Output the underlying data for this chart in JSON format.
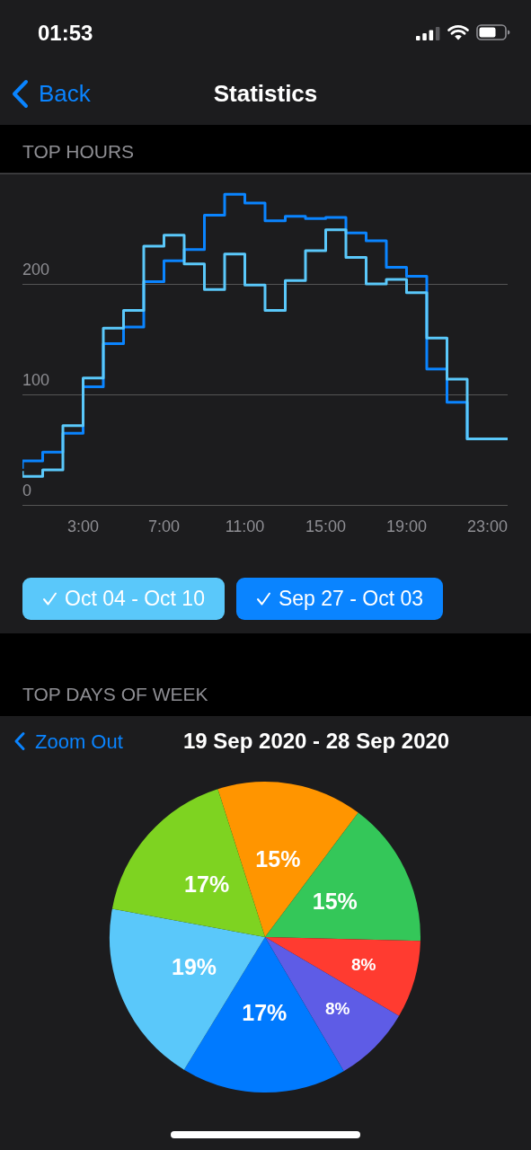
{
  "chart_data": [
    {
      "type": "step",
      "title": "TOP HOURS",
      "annotations": [
        "01:53",
        "Back",
        "Statistics"
      ],
      "x": [
        0,
        1,
        2,
        3,
        4,
        5,
        6,
        7,
        8,
        9,
        10,
        11,
        12,
        13,
        14,
        15,
        16,
        17,
        18,
        19,
        20,
        21,
        22,
        23,
        24
      ],
      "xlim": [
        0,
        24
      ],
      "xticks": [
        {
          "value": 3,
          "label": "3:00"
        },
        {
          "value": 7,
          "label": "7:00"
        },
        {
          "value": 11,
          "label": "11:00"
        },
        {
          "value": 15,
          "label": "15:00"
        },
        {
          "value": 19,
          "label": "19:00"
        },
        {
          "value": 23,
          "label": "23:00"
        }
      ],
      "ylim": [
        0,
        300
      ],
      "yticks": [
        0,
        100,
        200
      ],
      "grid": "y",
      "legend": "bottom",
      "series": [
        {
          "name": "Oct 04 - Oct 10",
          "color": "#5ac8fa",
          "values": [
            31,
            26,
            32,
            72,
            115,
            160,
            176,
            234,
            244,
            218,
            195,
            227,
            199,
            176,
            203,
            230,
            249,
            224,
            200,
            204,
            192,
            151,
            114,
            60,
            60
          ]
        },
        {
          "name": "Sep 27 - Oct 03",
          "color": "#0a84ff",
          "values": [
            33,
            40,
            48,
            65,
            107,
            146,
            161,
            202,
            221,
            231,
            262,
            281,
            273,
            257,
            261,
            259,
            260,
            246,
            239,
            215,
            207,
            123,
            93,
            60,
            60
          ]
        }
      ]
    },
    {
      "type": "pie",
      "title": "TOP DAYS OF WEEK",
      "subtitle": "19 Sep 2020 - 28 Sep 2020",
      "annotations": [
        "Zoom Out"
      ],
      "categories": [
        null,
        null,
        null,
        null,
        null,
        null,
        null
      ],
      "values": [
        15,
        15,
        8,
        8,
        17,
        19,
        17
      ],
      "colors": [
        "#ff9500",
        "#34c759",
        "#ff3b30",
        "#5e5ce6",
        "#007aff",
        "#5ac8fa",
        "#7ed321"
      ],
      "value_labels": [
        "15%",
        "15%",
        "8%",
        "8%",
        "17%",
        "19%",
        "17%"
      ]
    }
  ]
}
